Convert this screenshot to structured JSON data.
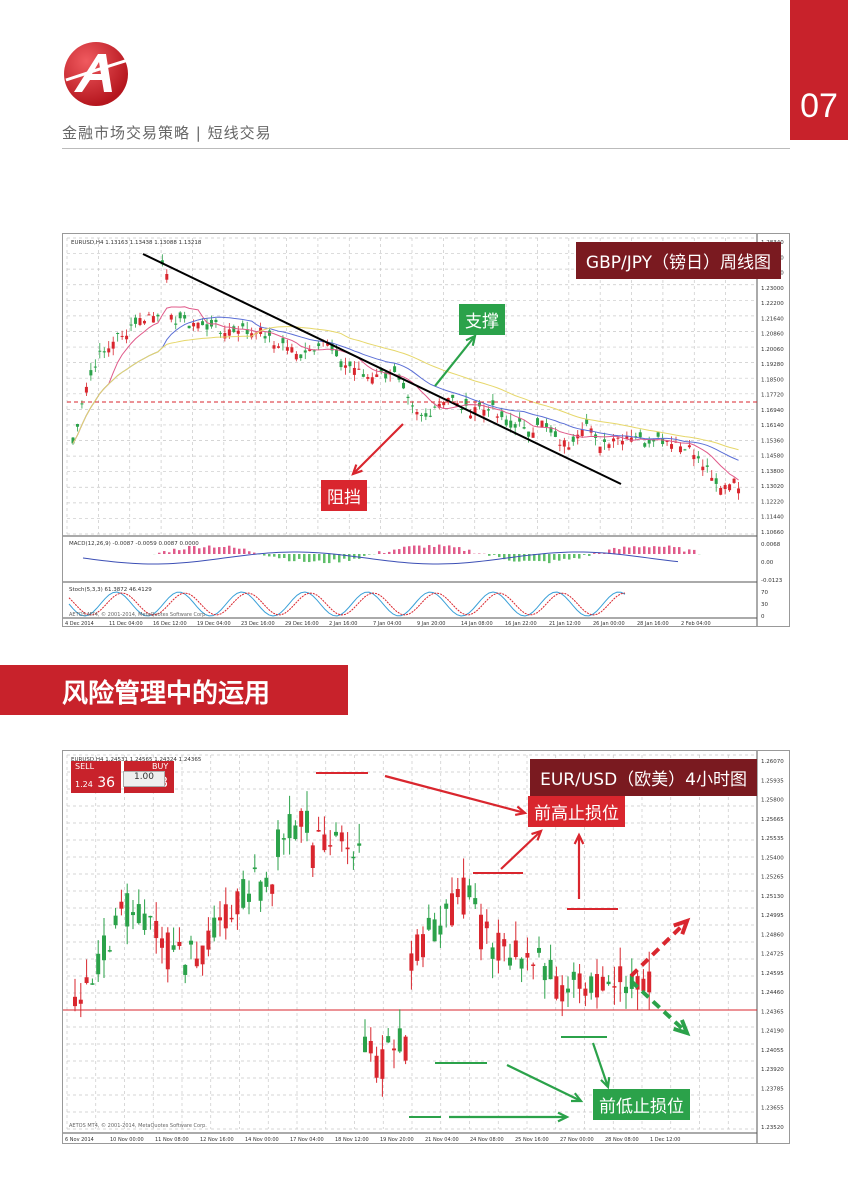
{
  "header": {
    "breadcrumb": "金融市场交易策略 | 短线交易",
    "page_number": "07",
    "logo_letter": "A"
  },
  "section": {
    "title": "风险管理中的运用"
  },
  "chart1": {
    "title": "GBP/JPY（镑日）周线图",
    "symbol_line": "EURUSD,H4  1.13163 1.13438 1.13088 1.13218",
    "labels": {
      "support": "支撑",
      "resistance": "阻挡"
    },
    "macd_label": "MACD(12,26,9) -0.0087 -0.0059 0.0087 0.0000",
    "stoch_label": "Stoch(5,3,3) 61.3872 46.4129",
    "copyright": "AETOS MT4, © 2001-2014, MetaQuotes Software Corp.",
    "price_ticks": [
      "1.28340",
      "1.26560",
      "1.24780",
      "1.23000",
      "1.22200",
      "1.21640",
      "1.20860",
      "1.20060",
      "1.19280",
      "1.18500",
      "1.17720",
      "1.16940",
      "1.16140",
      "1.15360",
      "1.14580",
      "1.13800",
      "1.13020",
      "1.12220",
      "1.11440",
      "1.10660"
    ],
    "macd_ticks": [
      "0.0068",
      "0.00",
      "-0.0123"
    ],
    "stoch_ticks": [
      "70",
      "30",
      "0"
    ],
    "time_ticks": [
      "4 Dec 2014",
      "11 Dec 04:00",
      "16 Dec 12:00",
      "19 Dec 04:00",
      "23 Dec 16:00",
      "29 Dec 16:00",
      "2 Jan 16:00",
      "7 Jan 04:00",
      "9 Jan 20:00",
      "14 Jan 08:00",
      "16 Jan 22:00",
      "21 Jan 12:00",
      "26 Jan 00:00",
      "28 Jan 16:00",
      "2 Feb 04:00"
    ]
  },
  "chart2": {
    "title": "EUR/USD（欧美）4小时图",
    "symbol_line": "EURUSD,H4  1.24531 1.24565 1.24324 1.24365",
    "trade": {
      "sell": "SELL",
      "buy": "BUY",
      "qty": "1.00",
      "sell_price_small": "1.24",
      "sell_price_big": "36",
      "buy_price_small": "1.24",
      "buy_price_big": "38"
    },
    "labels": {
      "prev_high_stop": "前高止损位",
      "prev_low_stop": "前低止损位"
    },
    "copyright": "AETOS MT4, © 2001-2014, MetaQuotes Software Corp.",
    "price_ticks": [
      "1.26070",
      "1.25935",
      "1.25800",
      "1.25665",
      "1.25535",
      "1.25400",
      "1.25265",
      "1.25130",
      "1.24995",
      "1.24860",
      "1.24725",
      "1.24595",
      "1.24460",
      "1.24365",
      "1.24190",
      "1.24055",
      "1.23920",
      "1.23785",
      "1.23655",
      "1.23520"
    ],
    "time_ticks": [
      "6 Nov 2014",
      "10 Nov 00:00",
      "11 Nov 08:00",
      "12 Nov 16:00",
      "14 Nov 00:00",
      "17 Nov 04:00",
      "18 Nov 12:00",
      "19 Nov 20:00",
      "21 Nov 04:00",
      "24 Nov 08:00",
      "25 Nov 16:00",
      "27 Nov 00:00",
      "28 Nov 08:00",
      "1 Dec 12:00"
    ]
  },
  "colors": {
    "brand_red": "#c8222b",
    "dark_red": "#7a1a20",
    "green": "#2ba24a",
    "candle_up": "#2ba24a",
    "candle_down": "#d9262e"
  }
}
